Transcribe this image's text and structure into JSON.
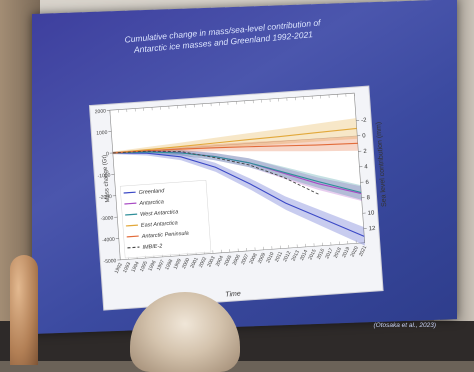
{
  "slide": {
    "title_line1": "Cumulative change in mass/sea-level contribution of",
    "title_line2": "Antarctic ice masses and Greenland 1992-2021",
    "credit": "(Otosaka et al., 2023)"
  },
  "chart_data": {
    "type": "line",
    "xlabel": "Time",
    "ylabel": "Mass change (Gt)",
    "y2label": "Sea level contribution (mm)",
    "xlim": [
      1992,
      2021
    ],
    "ylim": [
      -5000,
      2000
    ],
    "y_ticks": [
      "2000",
      "1000",
      "0",
      "-1000",
      "-2000",
      "-3000",
      "-4000",
      "-5000"
    ],
    "y2_ticks": [
      "-2",
      "0",
      "2",
      "4",
      "6",
      "8",
      "10",
      "12"
    ],
    "x_ticks": [
      "1992",
      "1993",
      "1994",
      "1995",
      "1996",
      "1997",
      "1998",
      "1999",
      "2000",
      "2001",
      "2002",
      "2003",
      "2004",
      "2005",
      "2006",
      "2007",
      "2008",
      "2009",
      "2010",
      "2011",
      "2012",
      "2013",
      "2014",
      "2015",
      "2016",
      "2017",
      "2018",
      "2019",
      "2020",
      "2021"
    ],
    "legend_position": "bottom-left",
    "colors": {
      "greenland": "#3b49c6",
      "antarctica": "#a84ac4",
      "west_antarctica": "#2f8f9a",
      "east_antarctica": "#e2a83a",
      "antarctic_peninsula": "#e26b3a",
      "imbie2": "#444444"
    },
    "series": [
      {
        "name": "Greenland",
        "x": [
          1992,
          1996,
          2000,
          2004,
          2008,
          2012,
          2016,
          2021
        ],
        "y": [
          0,
          -120,
          -400,
          -1000,
          -1900,
          -2900,
          -3700,
          -4700
        ]
      },
      {
        "name": "Antarctica",
        "x": [
          1992,
          1996,
          2000,
          2004,
          2008,
          2012,
          2016,
          2021
        ],
        "y": [
          0,
          -40,
          -200,
          -500,
          -900,
          -1500,
          -2100,
          -2700
        ]
      },
      {
        "name": "West Antarctica",
        "x": [
          1992,
          1996,
          2000,
          2004,
          2008,
          2012,
          2016,
          2021
        ],
        "y": [
          0,
          -60,
          -220,
          -500,
          -900,
          -1450,
          -2000,
          -2650
        ]
      },
      {
        "name": "East Antarctica",
        "x": [
          1992,
          1996,
          2000,
          2004,
          2008,
          2012,
          2016,
          2021
        ],
        "y": [
          0,
          40,
          80,
          130,
          180,
          220,
          280,
          350
        ]
      },
      {
        "name": "Antarctic Peninsula",
        "x": [
          1992,
          1996,
          2000,
          2004,
          2008,
          2012,
          2016,
          2021
        ],
        "y": [
          0,
          -10,
          -40,
          -90,
          -150,
          -220,
          -290,
          -350
        ]
      },
      {
        "name": "IMBIE-2",
        "x": [
          1992,
          1996,
          2000,
          2004,
          2008,
          2012,
          2016
        ],
        "y": [
          0,
          -30,
          -150,
          -550,
          -1000,
          -1700,
          -2600
        ]
      }
    ]
  }
}
